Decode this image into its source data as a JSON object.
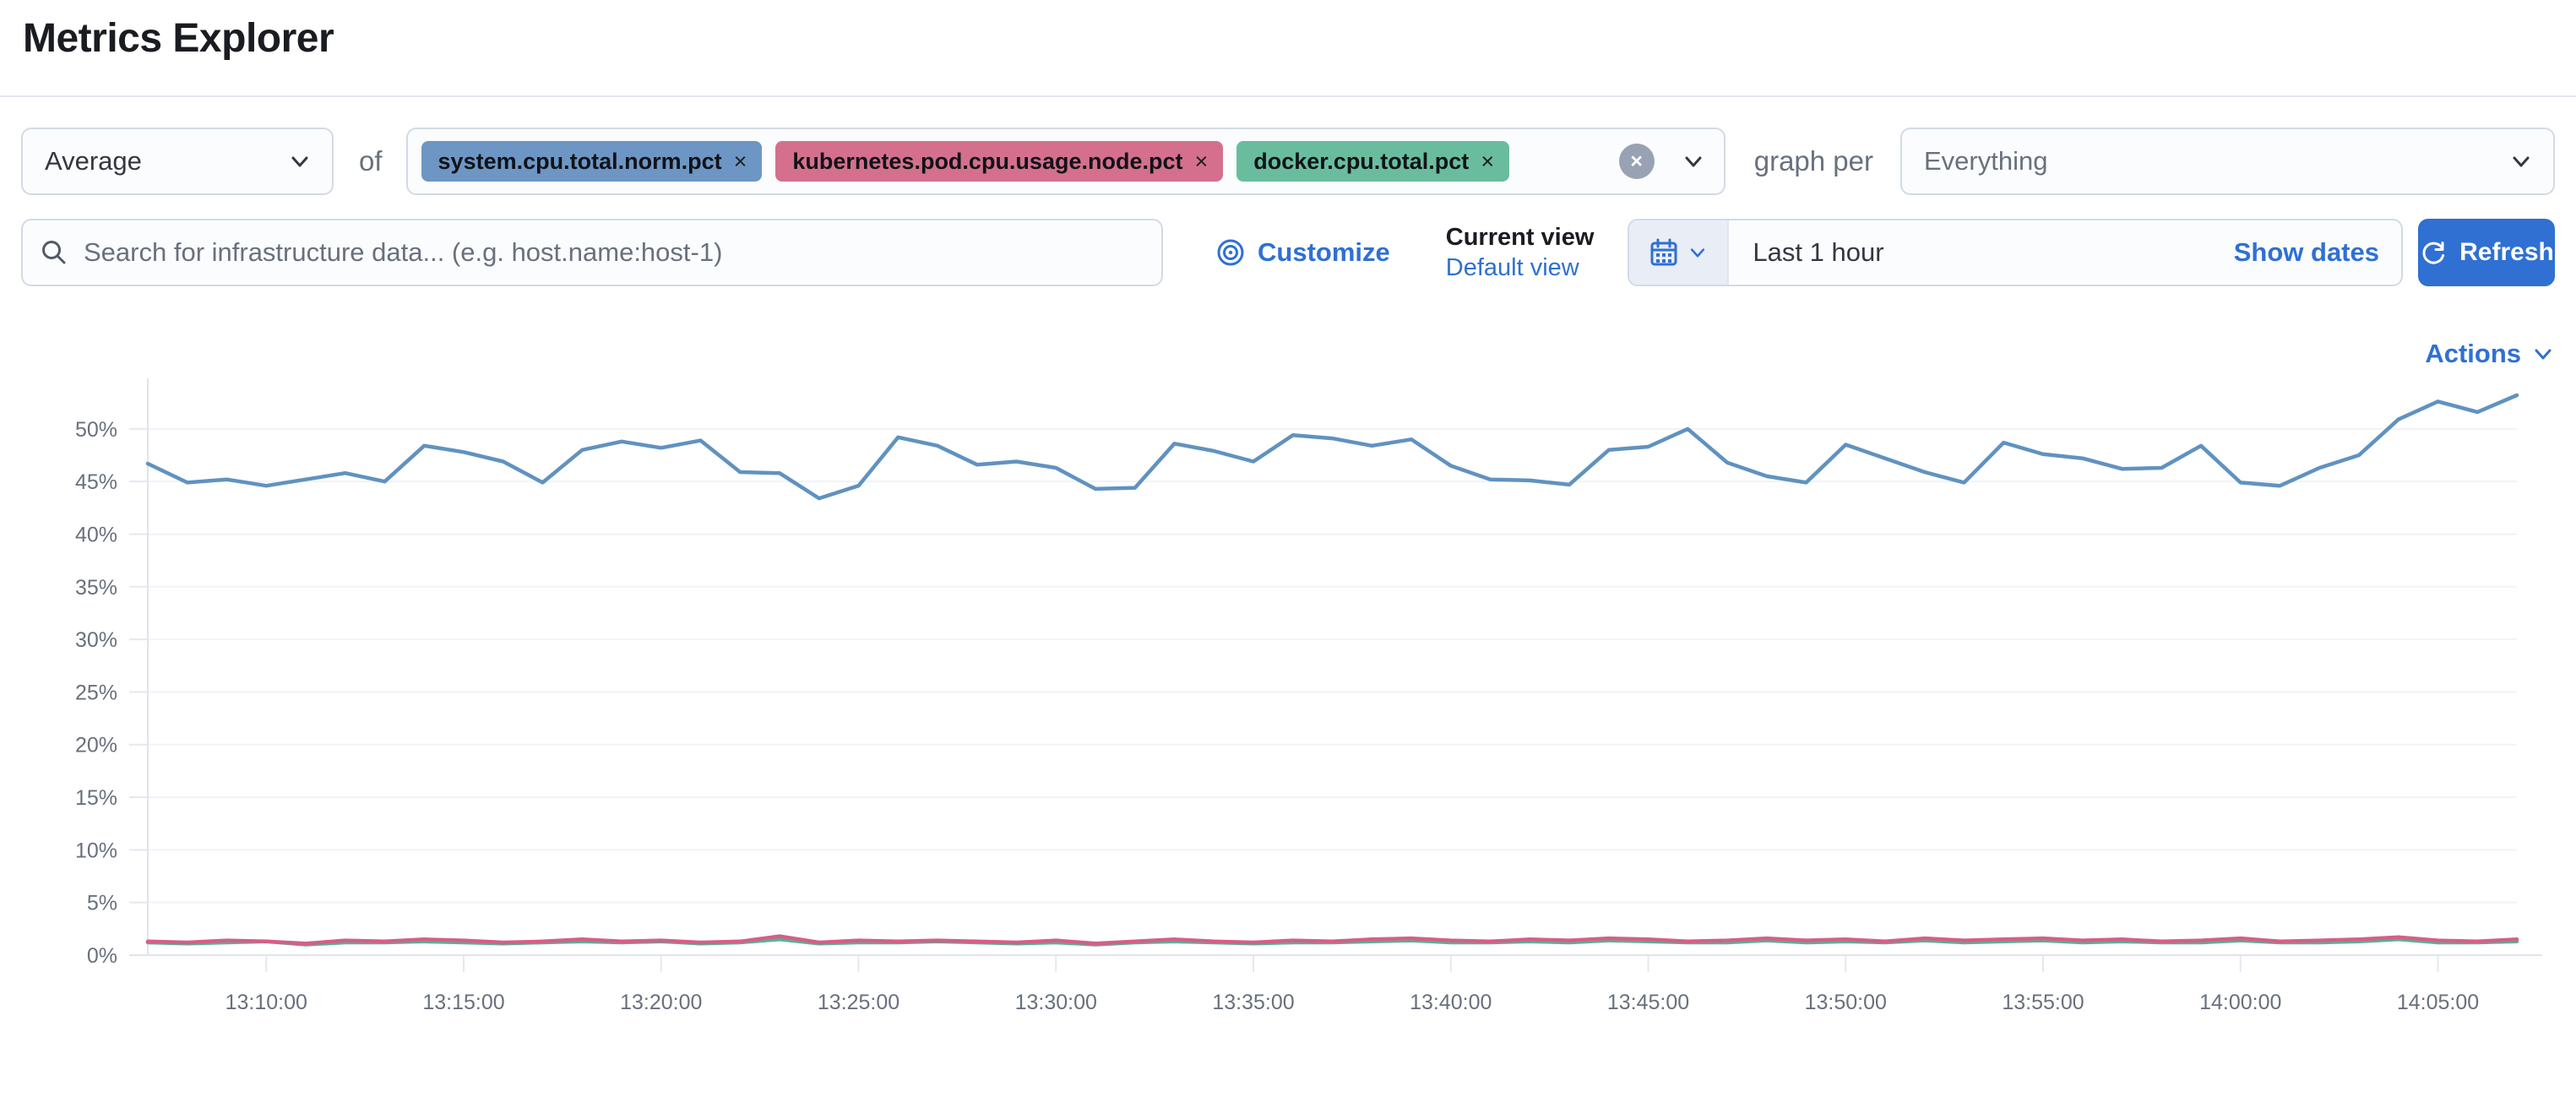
{
  "page": {
    "title": "Metrics Explorer"
  },
  "controls": {
    "aggregation": {
      "value": "Average"
    },
    "of_label": "of",
    "metrics": [
      {
        "label": "system.cpu.total.norm.pct",
        "remove_label": "×",
        "color": "#6d96c4"
      },
      {
        "label": "kubernetes.pod.cpu.usage.node.pct",
        "remove_label": "×",
        "color": "#d4708e"
      },
      {
        "label": "docker.cpu.total.pct",
        "remove_label": "×",
        "color": "#69bd9e"
      }
    ],
    "clear_label": "×",
    "graph_per_label": "graph per",
    "group_by": {
      "value": "Everything"
    }
  },
  "toolbar": {
    "search": {
      "placeholder": "Search for infrastructure data... (e.g. host.name:host-1)",
      "value": ""
    },
    "customize_label": "Customize",
    "view_picker": {
      "current_label": "Current view",
      "selected_view": "Default view"
    },
    "time_picker": {
      "value": "Last 1 hour",
      "show_dates_label": "Show dates"
    },
    "refresh_label": "Refresh"
  },
  "actions_label": "Actions",
  "chart_data": {
    "type": "line",
    "title": "",
    "xlabel": "",
    "ylabel": "",
    "x_start": "13:07:00",
    "x_interval_seconds": 60,
    "x_tick_labels": [
      "13:10:00",
      "13:15:00",
      "13:20:00",
      "13:25:00",
      "13:30:00",
      "13:35:00",
      "13:40:00",
      "13:45:00",
      "13:50:00",
      "13:55:00",
      "14:00:00",
      "14:05:00"
    ],
    "y_tick_percent": [
      0,
      5,
      10,
      15,
      20,
      25,
      30,
      35,
      40,
      45,
      50
    ],
    "ylim_percent": [
      0,
      54
    ],
    "grid": true,
    "legend": "none",
    "series": [
      {
        "name": "docker.cpu.total.pct",
        "color": "#54b399",
        "values_percent": [
          1.2,
          1.1,
          1.2,
          1.3,
          1.0,
          1.2,
          1.2,
          1.3,
          1.2,
          1.1,
          1.2,
          1.3,
          1.2,
          1.3,
          1.1,
          1.2,
          1.5,
          1.1,
          1.2,
          1.2,
          1.3,
          1.2,
          1.1,
          1.2,
          1.0,
          1.2,
          1.3,
          1.2,
          1.1,
          1.2,
          1.2,
          1.3,
          1.4,
          1.2,
          1.2,
          1.3,
          1.2,
          1.4,
          1.3,
          1.2,
          1.2,
          1.4,
          1.2,
          1.3,
          1.2,
          1.4,
          1.2,
          1.3,
          1.4,
          1.2,
          1.3,
          1.2,
          1.2,
          1.4,
          1.2,
          1.2,
          1.3,
          1.5,
          1.2,
          1.2,
          1.3
        ]
      },
      {
        "name": "kubernetes.pod.cpu.usage.node.pct",
        "color": "#d36086",
        "values_percent": [
          1.3,
          1.2,
          1.4,
          1.3,
          1.1,
          1.4,
          1.3,
          1.5,
          1.4,
          1.2,
          1.3,
          1.5,
          1.3,
          1.4,
          1.2,
          1.3,
          1.8,
          1.2,
          1.4,
          1.3,
          1.4,
          1.3,
          1.2,
          1.4,
          1.1,
          1.3,
          1.5,
          1.3,
          1.2,
          1.4,
          1.3,
          1.5,
          1.6,
          1.4,
          1.3,
          1.5,
          1.4,
          1.6,
          1.5,
          1.3,
          1.4,
          1.6,
          1.4,
          1.5,
          1.3,
          1.6,
          1.4,
          1.5,
          1.6,
          1.4,
          1.5,
          1.3,
          1.4,
          1.6,
          1.3,
          1.4,
          1.5,
          1.7,
          1.4,
          1.3,
          1.5
        ]
      },
      {
        "name": "system.cpu.total.norm.pct",
        "color": "#6092c0",
        "values_percent": [
          46.7,
          44.9,
          45.2,
          44.6,
          45.2,
          45.8,
          45.0,
          48.4,
          47.8,
          46.9,
          44.9,
          48.0,
          48.8,
          48.2,
          48.9,
          45.9,
          45.8,
          43.4,
          44.6,
          49.2,
          48.4,
          46.6,
          46.9,
          46.3,
          44.3,
          44.4,
          48.6,
          47.9,
          46.9,
          49.4,
          49.1,
          48.4,
          49.0,
          46.5,
          45.2,
          45.1,
          44.7,
          48.0,
          48.3,
          50.0,
          46.8,
          45.5,
          44.9,
          48.5,
          47.2,
          45.9,
          44.9,
          48.7,
          47.6,
          47.2,
          46.2,
          46.3,
          48.4,
          44.9,
          44.6,
          46.3,
          47.5,
          50.9,
          52.6,
          51.6,
          53.2
        ]
      }
    ]
  }
}
